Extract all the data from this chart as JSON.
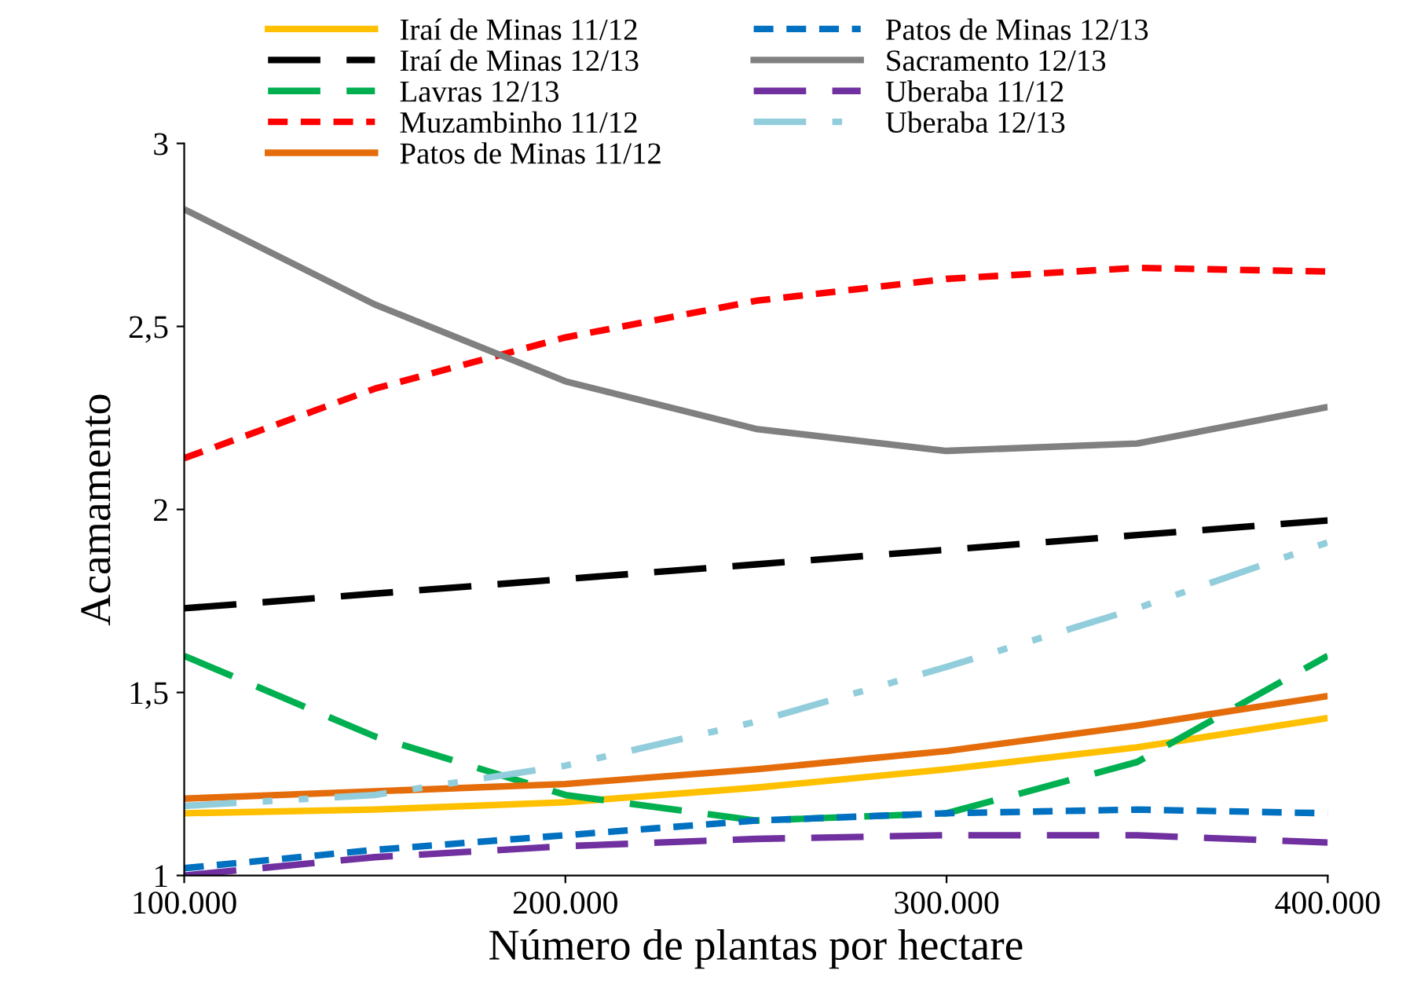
{
  "chart_data": {
    "type": "line",
    "xlabel": "Número de plantas por hectare",
    "ylabel": "Acamamento",
    "x": [
      100000,
      150000,
      200000,
      250000,
      300000,
      350000,
      400000
    ],
    "xlim": [
      100000,
      400000
    ],
    "xticks": [
      {
        "value": 100000,
        "label": "100.000"
      },
      {
        "value": 200000,
        "label": "200.000"
      },
      {
        "value": 300000,
        "label": "300.000"
      },
      {
        "value": 400000,
        "label": "400.000"
      }
    ],
    "ylim": [
      1,
      3
    ],
    "yticks": [
      1,
      {
        "value": 1.5,
        "label": "1,5"
      },
      2,
      {
        "value": 2.5,
        "label": "2,5"
      },
      3
    ],
    "grid": false,
    "legend": "top",
    "marker": "none",
    "series": [
      {
        "name": "Iraí de Minas 11/12",
        "color": "#ffc000",
        "line_style": "solid",
        "values": [
          1.17,
          1.18,
          1.2,
          1.24,
          1.29,
          1.35,
          1.43
        ]
      },
      {
        "name": "Iraí de Minas 12/13",
        "color": "#000000",
        "line_style": "dashed",
        "values": [
          1.73,
          1.77,
          1.81,
          1.85,
          1.89,
          1.93,
          1.97
        ]
      },
      {
        "name": "Lavras 12/13",
        "color": "#00b050",
        "line_style": "dashed",
        "values": [
          1.6,
          1.38,
          1.22,
          1.15,
          1.17,
          1.31,
          1.6
        ]
      },
      {
        "name": "Muzambinho 11/12",
        "color": "#ff0000",
        "line_style": "dotted",
        "values": [
          2.14,
          2.33,
          2.47,
          2.57,
          2.63,
          2.66,
          2.65
        ]
      },
      {
        "name": "Patos de Minas 11/12",
        "color": "#e46c0a",
        "line_style": "solid",
        "values": [
          1.21,
          1.23,
          1.25,
          1.29,
          1.34,
          1.41,
          1.49
        ]
      },
      {
        "name": "Patos de Minas 12/13",
        "color": "#0070c0",
        "line_style": "dotted",
        "values": [
          1.02,
          1.07,
          1.11,
          1.15,
          1.17,
          1.18,
          1.17
        ]
      },
      {
        "name": "Sacramento 12/13",
        "color": "#808080",
        "line_style": "solid",
        "values": [
          2.82,
          2.56,
          2.35,
          2.22,
          2.16,
          2.18,
          2.28
        ]
      },
      {
        "name": "Uberaba 11/12",
        "color": "#7030a0",
        "line_style": "dashed",
        "values": [
          1.0,
          1.05,
          1.08,
          1.1,
          1.11,
          1.11,
          1.09
        ]
      },
      {
        "name": "Uberaba 12/13",
        "color": "#92cddc",
        "line_style": "dashdot",
        "values": [
          1.19,
          1.22,
          1.3,
          1.42,
          1.57,
          1.73,
          1.91
        ]
      }
    ]
  }
}
